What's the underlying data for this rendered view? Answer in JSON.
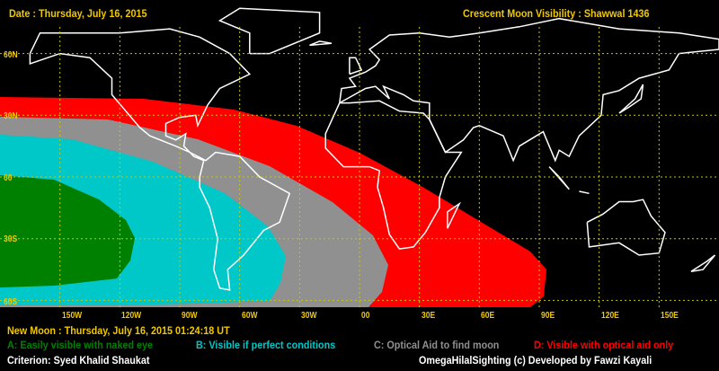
{
  "header": {
    "date": "Date : Thursday, July 16, 2015",
    "title": "Crescent Moon Visibility : Shawwal  1436"
  },
  "map": {
    "lat_labels": [
      "60N",
      "30N",
      "00",
      "30S",
      "60S"
    ],
    "lon_labels": [
      "150W",
      "120W",
      "90W",
      "60W",
      "30W",
      "00",
      "30E",
      "60E",
      "90E",
      "120E",
      "150E"
    ],
    "colors": {
      "A": "#008000",
      "B": "#00c8c8",
      "C": "#909090",
      "D": "#ff0000",
      "grid": "#c8c800",
      "coast": "#ffffff"
    }
  },
  "footer": {
    "new_moon": "New Moon : Thursday, July 16, 2015  01:24:18  UT",
    "legend": [
      {
        "label": "A: Easily visible with naked eye",
        "color": "#008000"
      },
      {
        "label": "B: Visible if perfect conditions",
        "color": "#00c8c8"
      },
      {
        "label": "C: Optical Aid to find moon",
        "color": "#909090"
      },
      {
        "label": "D: Visible with optical aid only",
        "color": "#ff0000"
      }
    ],
    "criterion": "Criterion: Syed Khalid Shaukat",
    "credit": "OmegaHilalSighting  (c)  Developed by Fawzi Kayali"
  }
}
